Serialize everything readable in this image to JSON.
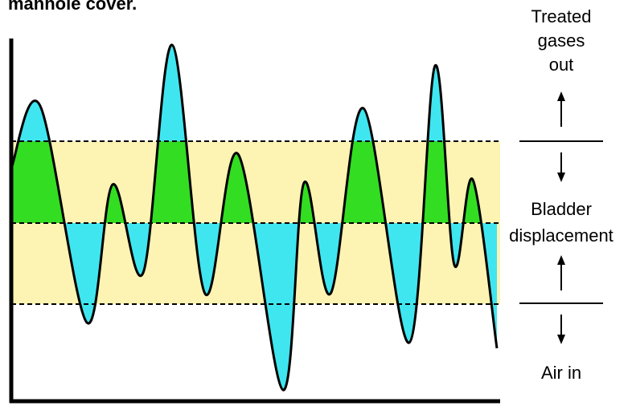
{
  "caption_top": "manhole cover.",
  "labels": {
    "treated_line1": "Treated",
    "treated_line2": "gases",
    "treated_line3": "out",
    "bladder_line1": "Bladder",
    "bladder_line2": "displacement",
    "air_in": "Air in"
  },
  "colors": {
    "band": "#fdf3b3",
    "above_band": "#3fe6f0",
    "inside_band_top": "#33dd22",
    "below_mid": "#3fe6f0",
    "curve": "#000000"
  },
  "icons": [
    "arrow-up-icon",
    "arrow-down-icon"
  ]
}
